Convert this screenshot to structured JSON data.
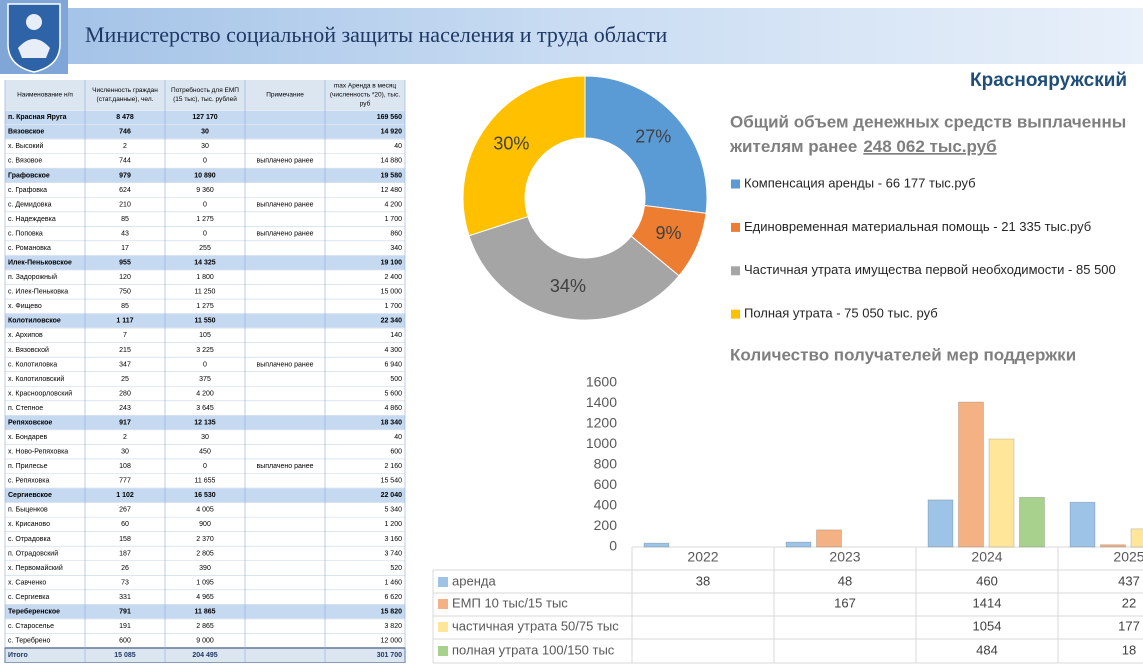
{
  "header": {
    "title": "Министерство социальной защиты населения и труда области",
    "region": "Краснояружский"
  },
  "table": {
    "columns": [
      [
        "Наименование н/п"
      ],
      [
        "Численность граждан",
        "(стат.данные), чел."
      ],
      [
        "Потребность для ЕМП",
        "(15 тыс), тыс. рублей"
      ],
      [
        "Примечание"
      ],
      [
        "max Аренда в месяц",
        "(численность *20), тыс.",
        "руб"
      ]
    ],
    "groups": [
      {
        "row": {
          "name": "п. Красная Яруга",
          "count": "8 478",
          "need": "127 170",
          "max": "169 560"
        },
        "items": []
      },
      {
        "row": {
          "name": "Вязовское",
          "count": "746",
          "need": "30",
          "max": "14 920"
        },
        "items": [
          {
            "name": "х. Высокий",
            "count": "2",
            "need": "30",
            "max": "40"
          },
          {
            "name": "с. Вязовое",
            "count": "744",
            "need": "0",
            "note": "выплачено ранее",
            "max": "14 880"
          }
        ]
      },
      {
        "row": {
          "name": "Графовское",
          "count": "979",
          "need": "10 890",
          "max": "19 580"
        },
        "items": [
          {
            "name": "с. Графовка",
            "count": "624",
            "need": "9 360",
            "max": "12 480"
          },
          {
            "name": "с. Демидовка",
            "count": "210",
            "need": "0",
            "note": "выплачено ранее",
            "max": "4 200"
          },
          {
            "name": "с. Надеждевка",
            "count": "85",
            "need": "1 275",
            "max": "1 700"
          },
          {
            "name": "с. Поповка",
            "count": "43",
            "need": "0",
            "note": "выплачено ранее",
            "max": "860"
          },
          {
            "name": "с. Романовка",
            "count": "17",
            "need": "255",
            "max": "340"
          }
        ]
      },
      {
        "row": {
          "name": "Илек-Пеньковское",
          "count": "955",
          "need": "14 325",
          "max": "19 100"
        },
        "items": [
          {
            "name": "п. Задорожный",
            "count": "120",
            "need": "1 800",
            "max": "2 400"
          },
          {
            "name": "с. Илек-Пеньковка",
            "count": "750",
            "need": "11 250",
            "max": "15 000"
          },
          {
            "name": "х. Фищево",
            "count": "85",
            "need": "1 275",
            "max": "1 700"
          }
        ]
      },
      {
        "row": {
          "name": "Колотиловское",
          "count": "1 117",
          "need": "11 550",
          "max": "22 340"
        },
        "items": [
          {
            "name": "х. Архипов",
            "count": "7",
            "need": "105",
            "max": "140"
          },
          {
            "name": "х. Вязовской",
            "count": "215",
            "need": "3 225",
            "max": "4 300"
          },
          {
            "name": "с. Колотиловка",
            "count": "347",
            "need": "0",
            "note": "выплачено ранее",
            "max": "6 940"
          },
          {
            "name": "х. Колотиловский",
            "count": "25",
            "need": "375",
            "max": "500"
          },
          {
            "name": "х. Красноорловский",
            "count": "280",
            "need": "4 200",
            "max": "5 600"
          },
          {
            "name": "п. Степное",
            "count": "243",
            "need": "3 645",
            "max": "4 860"
          }
        ]
      },
      {
        "row": {
          "name": "Репяховское",
          "count": "917",
          "need": "12 135",
          "max": "18 340"
        },
        "items": [
          {
            "name": "х. Бондарев",
            "count": "2",
            "need": "30",
            "max": "40"
          },
          {
            "name": "х. Ново-Репяховка",
            "count": "30",
            "need": "450",
            "max": "600"
          },
          {
            "name": "п. Прилесье",
            "count": "108",
            "need": "0",
            "note": "выплачено ранее",
            "max": "2 160"
          },
          {
            "name": "с. Репяховка",
            "count": "777",
            "need": "11 655",
            "max": "15 540"
          }
        ]
      },
      {
        "row": {
          "name": "Сергиевское",
          "count": "1 102",
          "need": "16 530",
          "max": "22 040"
        },
        "items": [
          {
            "name": "п. Быценков",
            "count": "267",
            "need": "4 005",
            "max": "5 340"
          },
          {
            "name": "х. Крисаново",
            "count": "60",
            "need": "900",
            "max": "1 200"
          },
          {
            "name": "с. Отрадовка",
            "count": "158",
            "need": "2 370",
            "max": "3 160"
          },
          {
            "name": "п. Отрадовский",
            "count": "187",
            "need": "2 805",
            "max": "3 740"
          },
          {
            "name": "х. Первомайский",
            "count": "26",
            "need": "390",
            "max": "520"
          },
          {
            "name": "х. Савченко",
            "count": "73",
            "need": "1 095",
            "max": "1 460"
          },
          {
            "name": "с. Сергиевка",
            "count": "331",
            "need": "4 965",
            "max": "6 620"
          }
        ]
      },
      {
        "row": {
          "name": "Тереберенское",
          "count": "791",
          "need": "11 865",
          "max": "15 820"
        },
        "items": [
          {
            "name": "с. Староселье",
            "count": "191",
            "need": "2 865",
            "max": "3 820"
          },
          {
            "name": "с. Теребрено",
            "count": "600",
            "need": "9 000",
            "max": "12 000"
          }
        ]
      }
    ],
    "total": {
      "name": "Итого",
      "count": "15 085",
      "need": "204 495",
      "max": "301 700"
    }
  },
  "chart_data": [
    {
      "type": "pie",
      "title_lines": [
        "Общий объем денежных средств выплаченны",
        "жителям ранее"
      ],
      "title_amount": "248 062 тыс.руб",
      "categories": [
        "Компенсация аренды - 66 177 тыс.руб",
        "Единовременная материальная помощь - 21 335 тыс.руб",
        "Частичная утрата имущества первой необходимости - 85 500",
        "Полная утрата - 75 050 тыс. руб"
      ],
      "values": [
        27,
        9,
        34,
        30
      ],
      "value_labels": [
        "27%",
        "9%",
        "34%",
        "30%"
      ],
      "colors": [
        "#5b9bd5",
        "#ed7d31",
        "#a5a5a5",
        "#ffc000"
      ]
    },
    {
      "type": "bar",
      "title": "Количество получателей мер поддержки",
      "categories": [
        "2022",
        "2023",
        "2024",
        "2025"
      ],
      "series": [
        {
          "name": "аренда",
          "color": "#9dc3e6",
          "values": [
            38,
            48,
            460,
            437
          ]
        },
        {
          "name": "ЕМП 10 тыс/15 тыс",
          "color": "#f4b183",
          "values": [
            null,
            167,
            1414,
            22
          ]
        },
        {
          "name": "частичная утрата 50/75 тыс",
          "color": "#ffe699",
          "values": [
            null,
            null,
            1054,
            177
          ]
        },
        {
          "name": "полная утрата 100/150 тыс",
          "color": "#a9d18e",
          "values": [
            null,
            null,
            484,
            18
          ]
        }
      ],
      "ylim": [
        0,
        1600
      ],
      "yticks": [
        0,
        200,
        400,
        600,
        800,
        1000,
        1200,
        1400,
        1600
      ],
      "grid": false
    }
  ]
}
